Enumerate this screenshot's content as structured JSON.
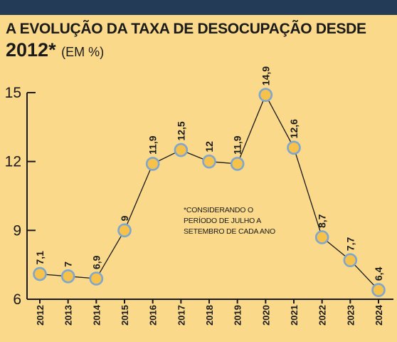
{
  "header": {
    "title_line1": "A EVOLUÇÃO DA TAXA DE DESOCUPAÇÃO DESDE",
    "title_line2": "2012*",
    "unit": "(EM %)"
  },
  "colors": {
    "background": "#fad98a",
    "topbar": "#243b57",
    "marker_fill": "#f7c24a",
    "marker_stroke": "#7ea6cf",
    "line": "#1a1a1a"
  },
  "chart_data": {
    "type": "line",
    "title": "A EVOLUÇÃO DA TAXA DE DESOCUPAÇÃO DESDE 2012* (EM %)",
    "categories": [
      "2012",
      "2013",
      "2014",
      "2015",
      "2016",
      "2017",
      "2018",
      "2019",
      "2020",
      "2021",
      "2022",
      "2023",
      "2024"
    ],
    "series": [
      {
        "values": [
          7.1,
          7,
          6.9,
          9,
          11.9,
          12.5,
          12,
          11.9,
          14.9,
          12.6,
          8.7,
          7.7,
          6.4
        ],
        "labels": [
          "7,1",
          "7",
          "6,9",
          "9",
          "11,9",
          "12,5",
          "12",
          "11,9",
          "14,9",
          "12,6",
          "8,7",
          "7,7",
          "6,4"
        ]
      }
    ],
    "yticks": [
      6,
      9,
      12,
      15
    ],
    "ytick_labels": [
      "6",
      "9",
      "12",
      "15"
    ],
    "ylim": [
      6,
      15
    ],
    "xlabel": "",
    "ylabel": "",
    "grid": false,
    "note": [
      "*CONSIDERANDO O",
      "PERÍODO DE JULHO A",
      "SETEMBRO DE CADA ANO"
    ]
  }
}
